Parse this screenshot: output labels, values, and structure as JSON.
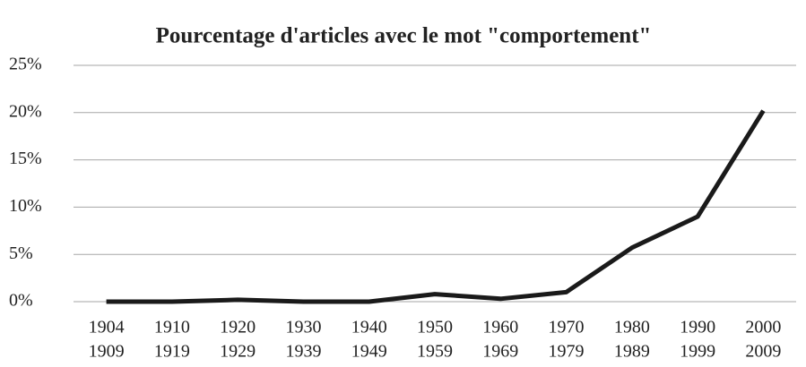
{
  "chart_data": {
    "type": "line",
    "title": "Pourcentage d'articles avec le mot \"comportement\"",
    "categories": [
      [
        "1904",
        "1909"
      ],
      [
        "1910",
        "1919"
      ],
      [
        "1920",
        "1929"
      ],
      [
        "1930",
        "1939"
      ],
      [
        "1940",
        "1949"
      ],
      [
        "1950",
        "1959"
      ],
      [
        "1960",
        "1969"
      ],
      [
        "1970",
        "1979"
      ],
      [
        "1980",
        "1989"
      ],
      [
        "1990",
        "1999"
      ],
      [
        "2000",
        "2009"
      ]
    ],
    "values": [
      0,
      0,
      0.2,
      0,
      0,
      0.8,
      0.3,
      1.0,
      5.7,
      9.0,
      20.2
    ],
    "color": "#1a1a1a",
    "ylim": [
      0,
      25
    ],
    "yticks": [
      {
        "value": 0,
        "label": "0%"
      },
      {
        "value": 5,
        "label": "5%"
      },
      {
        "value": 10,
        "label": "10%"
      },
      {
        "value": 15,
        "label": "15%"
      },
      {
        "value": 20,
        "label": "20%"
      },
      {
        "value": 25,
        "label": "25%"
      }
    ],
    "grid": true
  }
}
